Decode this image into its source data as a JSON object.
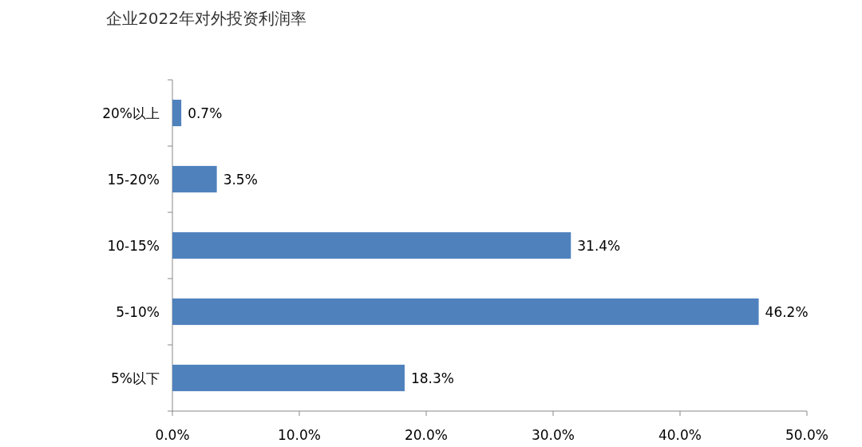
{
  "chart_data": {
    "type": "bar",
    "orientation": "horizontal",
    "title": "企业2022年对外投资利润率",
    "categories": [
      "20%以上",
      "15-20%",
      "10-15%",
      "5-10%",
      "5%以下"
    ],
    "series": [
      {
        "color": "#4f81bd",
        "values": [
          0.7,
          3.5,
          31.4,
          46.2,
          18.3
        ]
      }
    ],
    "value_labels": [
      "0.7%",
      "3.5%",
      "31.4%",
      "46.2%",
      "18.3%"
    ],
    "xlim": [
      0,
      50
    ],
    "xticks": [
      {
        "value": 0,
        "label": "0.0%"
      },
      {
        "value": 10,
        "label": "10.0%"
      },
      {
        "value": 20,
        "label": "20.0%"
      },
      {
        "value": 30,
        "label": "30.0%"
      },
      {
        "value": 40,
        "label": "40.0%"
      },
      {
        "value": 50,
        "label": "50.0%"
      }
    ],
    "grid": false
  }
}
